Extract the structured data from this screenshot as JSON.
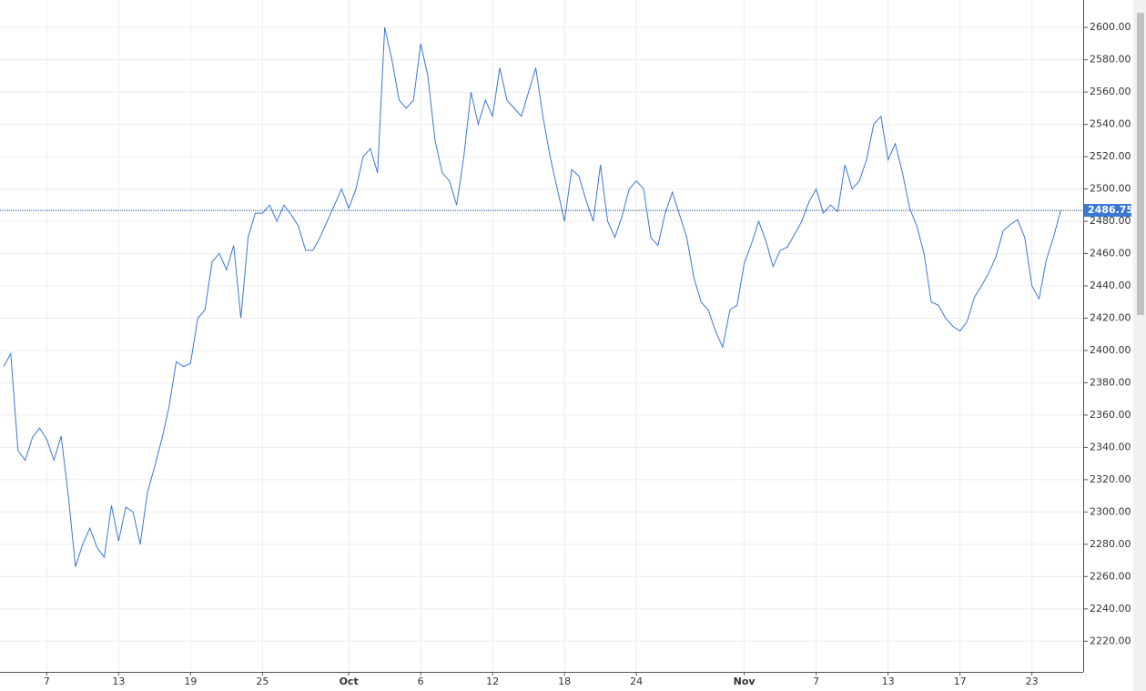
{
  "chart_data": {
    "type": "line",
    "categories": [
      null,
      null,
      null,
      null,
      null,
      null,
      "7",
      null,
      null,
      null,
      null,
      null,
      null,
      null,
      null,
      null,
      "13",
      null,
      null,
      null,
      null,
      null,
      null,
      null,
      null,
      null,
      "19",
      null,
      null,
      null,
      null,
      null,
      null,
      null,
      null,
      null,
      "25",
      null,
      null,
      null,
      null,
      null,
      null,
      null,
      null,
      null,
      null,
      null,
      "Oct",
      null,
      null,
      null,
      null,
      null,
      null,
      null,
      null,
      null,
      "6",
      null,
      null,
      null,
      null,
      null,
      null,
      null,
      null,
      null,
      "12",
      null,
      null,
      null,
      null,
      null,
      null,
      null,
      null,
      null,
      "18",
      null,
      null,
      null,
      null,
      null,
      null,
      null,
      null,
      null,
      "24",
      null,
      null,
      null,
      null,
      null,
      null,
      null,
      null,
      null,
      null,
      null,
      null,
      null,
      null,
      "Nov",
      null,
      null,
      null,
      null,
      null,
      null,
      null,
      null,
      null,
      "7",
      null,
      null,
      null,
      null,
      null,
      null,
      null,
      null,
      null,
      "13",
      null,
      null,
      null,
      null,
      null,
      null,
      null,
      null,
      null,
      "17",
      null,
      null,
      null,
      null,
      null,
      null,
      null,
      null,
      null,
      "23",
      null,
      null,
      null,
      null
    ],
    "series": [
      {
        "color": "#3a78d4",
        "values": [
          2390,
          2398,
          2338,
          2332,
          2346,
          2352,
          2345,
          2332,
          2347,
          2310,
          2266,
          2280,
          2290,
          2278,
          2272,
          2304,
          2282,
          2303,
          2300,
          2280,
          2312,
          2328,
          2345,
          2365,
          2393,
          2390,
          2392,
          2420,
          2425,
          2455,
          2460,
          2450,
          2465,
          2420,
          2470,
          2485,
          2485,
          2490,
          2480,
          2490,
          2484,
          2477,
          2462,
          2462,
          2470,
          2480,
          2490,
          2500,
          2488,
          2500,
          2520,
          2525,
          2510,
          2600,
          2580,
          2555,
          2550,
          2555,
          2590,
          2570,
          2530,
          2510,
          2505,
          2490,
          2520,
          2560,
          2540,
          2555,
          2545,
          2575,
          2555,
          2550,
          2545,
          2560,
          2575,
          2545,
          2520,
          2500,
          2480,
          2512,
          2508,
          2493,
          2480,
          2515,
          2480,
          2470,
          2483,
          2500,
          2505,
          2500,
          2470,
          2465,
          2485,
          2498,
          2484,
          2470,
          2445,
          2430,
          2425,
          2412,
          2402,
          2425,
          2428,
          2454,
          2466,
          2480,
          2468,
          2452,
          2462,
          2464,
          2472,
          2480,
          2492,
          2500,
          2485,
          2490,
          2486,
          2515,
          2500,
          2505,
          2518,
          2540,
          2545,
          2518,
          2528,
          2510,
          2488,
          2477,
          2460,
          2430,
          2428,
          2420,
          2415,
          2412,
          2418,
          2433,
          2440,
          2448,
          2458,
          2474,
          2478,
          2481,
          2470,
          2440,
          2432,
          2456,
          2470,
          2486.75
        ]
      }
    ],
    "ylim": [
      2201,
      2617
    ],
    "yticks": [
      {
        "value": 2220,
        "label": "2220.00"
      },
      {
        "value": 2240,
        "label": "2240.00"
      },
      {
        "value": 2260,
        "label": "2260.00"
      },
      {
        "value": 2280,
        "label": "2280.00"
      },
      {
        "value": 2300,
        "label": "2300.00"
      },
      {
        "value": 2320,
        "label": "2320.00"
      },
      {
        "value": 2340,
        "label": "2340.00"
      },
      {
        "value": 2360,
        "label": "2360.00"
      },
      {
        "value": 2380,
        "label": "2380.00"
      },
      {
        "value": 2400,
        "label": "2400.00"
      },
      {
        "value": 2420,
        "label": "2420.00"
      },
      {
        "value": 2440,
        "label": "2440.00"
      },
      {
        "value": 2460,
        "label": "2460.00"
      },
      {
        "value": 2480,
        "label": "2480.00"
      },
      {
        "value": 2500,
        "label": "2500.00"
      },
      {
        "value": 2520,
        "label": "2520.00"
      },
      {
        "value": 2540,
        "label": "2540.00"
      },
      {
        "value": 2560,
        "label": "2560.00"
      },
      {
        "value": 2580,
        "label": "2580.00"
      },
      {
        "value": 2600,
        "label": "2600.00"
      }
    ],
    "grid": true
  }
}
